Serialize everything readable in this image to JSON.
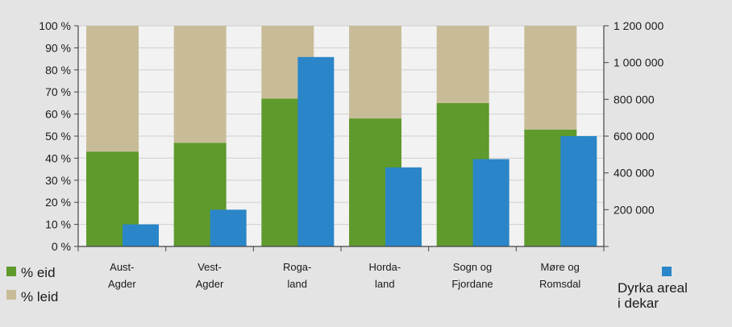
{
  "chart_data": {
    "type": "bar",
    "categories": [
      "Aust-Agder",
      "Vest-Agder",
      "Roga-land",
      "Horda-land",
      "Sogn og Fjordane",
      "Møre og Romsdal"
    ],
    "category_lines": [
      [
        "Aust-",
        "Agder"
      ],
      [
        "Vest-",
        "Agder"
      ],
      [
        "Roga-",
        "land"
      ],
      [
        "Horda-",
        "land"
      ],
      [
        "Sogn og",
        "Fjordane"
      ],
      [
        "Møre og",
        "Romsdal"
      ]
    ],
    "series": [
      {
        "name": "% eid",
        "axis": "left",
        "stack": "share",
        "values": [
          43,
          47,
          67,
          58,
          65,
          53
        ],
        "color": "#5f9a2c"
      },
      {
        "name": "% leid",
        "axis": "left",
        "stack": "share",
        "values": [
          57,
          53,
          33,
          42,
          35,
          47
        ],
        "color": "#c8bc98"
      },
      {
        "name": "Dyrka areal i dekar",
        "axis": "right",
        "values": [
          120000,
          200000,
          1030000,
          430000,
          475000,
          600000
        ],
        "color": "#2a86c8"
      }
    ],
    "y_left": {
      "min": 0,
      "max": 100,
      "ticks": [
        "0 %",
        "10 %",
        "20 %",
        "30 %",
        "40 %",
        "50 %",
        "60 %",
        "70 %",
        "80 %",
        "90 %",
        "100 %"
      ]
    },
    "y_right": {
      "min": 0,
      "max": 1200000,
      "ticks": [
        "200 000",
        "400 000",
        "600 000",
        "800 000",
        "1 000 000",
        "1 200 000"
      ]
    },
    "legend": [
      {
        "label": "% eid",
        "color": "#5f9a2c",
        "placement": "bottom-left"
      },
      {
        "label": "% leid",
        "color": "#c8bc98",
        "placement": "bottom-left"
      },
      {
        "label_lines": [
          "Dyrka areal",
          "i dekar"
        ],
        "color": "#2a86c8",
        "placement": "bottom-right"
      }
    ],
    "grid": true
  }
}
